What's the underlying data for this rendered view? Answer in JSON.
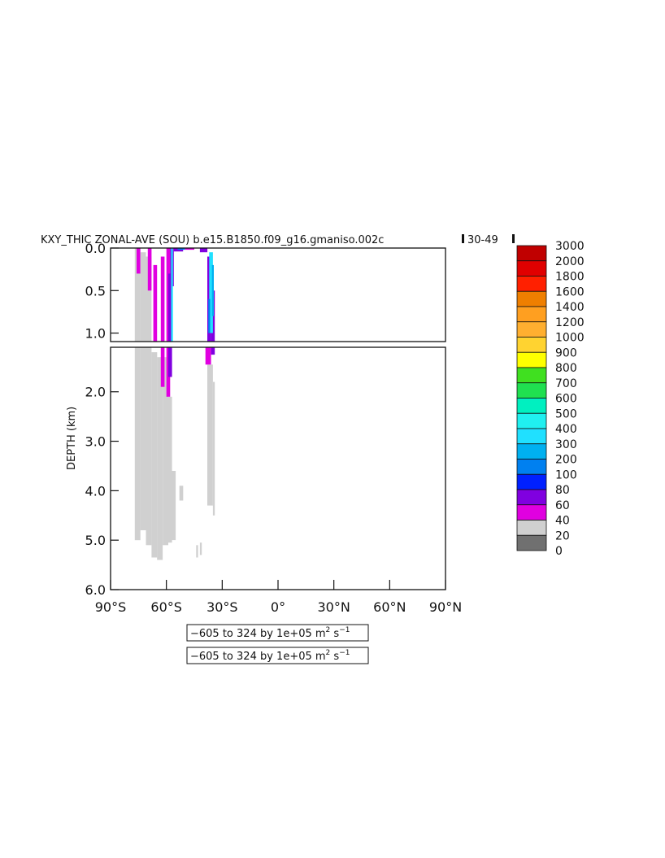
{
  "chart_data": {
    "type": "heatmap",
    "title": "KXY_THIC ZONAL-AVE (SOU) b.e15.B1850.f09_g16.gmaniso.002c",
    "title_suffix": "30-49",
    "ylabel": "DEPTH (km)",
    "xlabel": "",
    "x_tick_labels": [
      "90°S",
      "60°S",
      "30°S",
      "0°",
      "30°N",
      "60°N",
      "90°N"
    ],
    "x_ticks": [
      -90,
      -60,
      -30,
      0,
      30,
      60,
      90
    ],
    "xlim": [
      -90,
      90
    ],
    "top_panel": {
      "y_tick_labels": [
        "0.0",
        "0.5",
        "1.0"
      ],
      "y_ticks": [
        0.0,
        0.5,
        1.0
      ],
      "ylim": [
        0.0,
        1.1
      ]
    },
    "bottom_panel": {
      "y_tick_labels": [
        "2.0",
        "3.0",
        "4.0",
        "5.0",
        "6.0"
      ],
      "y_ticks": [
        2.0,
        3.0,
        4.0,
        5.0,
        6.0
      ],
      "ylim": [
        1.1,
        6.0
      ]
    },
    "colorbar": {
      "levels": [
        "3000",
        "2000",
        "1800",
        "1600",
        "1400",
        "1200",
        "1000",
        "900",
        "800",
        "700",
        "600",
        "500",
        "400",
        "300",
        "200",
        "100",
        "80",
        "60",
        "40",
        "20",
        "0"
      ],
      "colors": [
        "#c00000",
        "#e00000",
        "#ff2000",
        "#ef7f00",
        "#ff9f20",
        "#ffaf30",
        "#ffd330",
        "#ffff00",
        "#40e020",
        "#20e050",
        "#00f0c0",
        "#20f0f0",
        "#20e0ff",
        "#00b0f0",
        "#0080f0",
        "#0020ff",
        "#8000e0",
        "#e000e0",
        "#d0d0d0",
        "#707070"
      ]
    },
    "range_labels": [
      {
        "text": "−605 to 324 by 1e+05 m",
        "sup1": "2",
        "mid": " s",
        "sup2": "−1"
      },
      {
        "text": "−605 to 324 by 1e+05 m",
        "sup1": "2",
        "mid": " s",
        "sup2": "−1"
      }
    ],
    "cells": [
      {
        "lat": [
          -77,
          -74
        ],
        "depth": [
          0.0,
          5.0
        ],
        "v": "20"
      },
      {
        "lat": [
          -74,
          -71
        ],
        "depth": [
          0.05,
          4.8
        ],
        "v": "20"
      },
      {
        "lat": [
          -71,
          -68
        ],
        "depth": [
          0.1,
          5.1
        ],
        "v": "20"
      },
      {
        "lat": [
          -68,
          -65
        ],
        "depth": [
          1.2,
          5.35
        ],
        "v": "20"
      },
      {
        "lat": [
          -65,
          -62
        ],
        "depth": [
          1.3,
          5.4
        ],
        "v": "20"
      },
      {
        "lat": [
          -62,
          -59
        ],
        "depth": [
          1.3,
          5.1
        ],
        "v": "20"
      },
      {
        "lat": [
          -59,
          -57
        ],
        "depth": [
          2.1,
          5.05
        ],
        "v": "20"
      },
      {
        "lat": [
          -57,
          -55
        ],
        "depth": [
          3.6,
          5.0
        ],
        "v": "20"
      },
      {
        "lat": [
          -53,
          -51
        ],
        "depth": [
          3.9,
          4.2
        ],
        "v": "20"
      },
      {
        "lat": [
          -44,
          -43
        ],
        "depth": [
          5.1,
          5.35
        ],
        "v": "20"
      },
      {
        "lat": [
          -42,
          -41
        ],
        "depth": [
          5.05,
          5.3
        ],
        "v": "20"
      },
      {
        "lat": [
          -38,
          -35
        ],
        "depth": [
          1.45,
          4.3
        ],
        "v": "20"
      },
      {
        "lat": [
          -35,
          -34
        ],
        "depth": [
          1.8,
          4.5
        ],
        "v": "20"
      },
      {
        "lat": [
          -76,
          -74
        ],
        "depth": [
          0.0,
          0.3
        ],
        "v": "40"
      },
      {
        "lat": [
          -70,
          -68
        ],
        "depth": [
          0.0,
          0.5
        ],
        "v": "40"
      },
      {
        "lat": [
          -63,
          -61
        ],
        "depth": [
          0.1,
          1.9
        ],
        "v": "40"
      },
      {
        "lat": [
          -67,
          -65
        ],
        "depth": [
          0.2,
          1.1
        ],
        "v": "40"
      },
      {
        "lat": [
          -60,
          -58
        ],
        "depth": [
          0.0,
          2.1
        ],
        "v": "40"
      },
      {
        "lat": [
          -39,
          -36
        ],
        "depth": [
          1.1,
          1.45
        ],
        "v": "40"
      },
      {
        "lat": [
          -58,
          -56
        ],
        "depth": [
          0.0,
          0.45
        ],
        "v": "60"
      },
      {
        "lat": [
          -59,
          -57
        ],
        "depth": [
          0.3,
          1.7
        ],
        "v": "60"
      },
      {
        "lat": [
          -58.5,
          -57
        ],
        "depth": [
          1.1,
          1.7
        ],
        "v": "60"
      },
      {
        "lat": [
          -36,
          -34
        ],
        "depth": [
          0.5,
          1.25
        ],
        "v": "60"
      },
      {
        "lat": [
          -38,
          -36
        ],
        "depth": [
          0.1,
          1.1
        ],
        "v": "60"
      },
      {
        "lat": [
          -57.5,
          -56.5
        ],
        "depth": [
          0.0,
          1.1
        ],
        "v": "300"
      },
      {
        "lat": [
          -37,
          -35
        ],
        "depth": [
          0.05,
          1.0
        ],
        "v": "300"
      },
      {
        "lat": [
          -35.5,
          -34.5
        ],
        "depth": [
          0.2,
          0.8
        ],
        "v": "200"
      },
      {
        "lat": [
          -37.5,
          -36.5
        ],
        "depth": [
          0.6,
          1.0
        ],
        "v": "100"
      },
      {
        "lat": [
          -56,
          -51
        ],
        "depth": [
          0.0,
          0.04
        ],
        "v": "60"
      },
      {
        "lat": [
          -42,
          -38
        ],
        "depth": [
          0.0,
          0.05
        ],
        "v": "60"
      },
      {
        "lat": [
          -54,
          -50
        ],
        "depth": [
          0.0,
          0.02
        ],
        "v": "100"
      },
      {
        "lat": [
          -50,
          -45
        ],
        "depth": [
          0.0,
          0.02
        ],
        "v": "40"
      }
    ]
  }
}
